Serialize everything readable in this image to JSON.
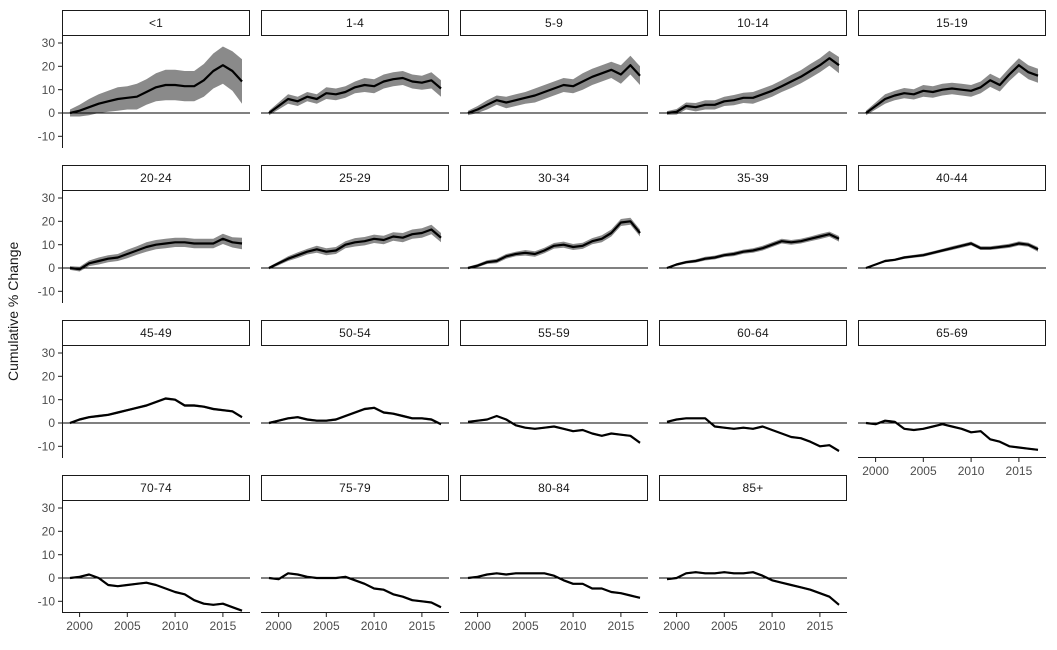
{
  "chart_data": {
    "type": "line",
    "title": "",
    "xlabel": "",
    "ylabel": "Cumulative % Change",
    "legend": "none",
    "grid": "off",
    "facet_layout": "5 columns x 4 rows, facet strips on top",
    "x": [
      1999,
      2000,
      2001,
      2002,
      2003,
      2004,
      2005,
      2006,
      2007,
      2008,
      2009,
      2010,
      2011,
      2012,
      2013,
      2014,
      2015,
      2016,
      2017
    ],
    "x_ticks": [
      2000,
      2005,
      2010,
      2015
    ],
    "y_ticks": [
      30,
      20,
      10,
      0,
      -10
    ],
    "ylim": [
      -15,
      33
    ],
    "line_color": "#000000",
    "ribbon_color": "#8a8a8a",
    "zero_line_color": "#000000",
    "axis_line_color": "#1a1a1a",
    "tick_text_color": "#4d4d4d",
    "panels": [
      {
        "label": "<1",
        "values": [
          0,
          1,
          2.5,
          4,
          5,
          6,
          6.5,
          7,
          9,
          11,
          12,
          12,
          11.5,
          11.5,
          14,
          18,
          20.5,
          18,
          13.5
        ],
        "band": [
          1.5,
          2.5,
          3.5,
          4,
          4.5,
          5,
          5,
          5.5,
          5.5,
          6,
          6.5,
          6.5,
          6.5,
          6.5,
          7,
          7.5,
          8,
          8.5,
          9.5
        ]
      },
      {
        "label": "1-4",
        "values": [
          0,
          3,
          6,
          5,
          7,
          6,
          8.5,
          8,
          9,
          11,
          12,
          11.5,
          13.5,
          14.5,
          15,
          13.5,
          13,
          14,
          10.5
        ],
        "band": [
          1,
          1.5,
          2,
          2,
          2,
          2,
          2.5,
          2.5,
          2.5,
          2.5,
          3,
          3,
          3,
          3,
          3,
          3,
          3,
          3.5,
          3.5
        ]
      },
      {
        "label": "5-9",
        "values": [
          0,
          1.5,
          3.5,
          5.5,
          4.5,
          5.5,
          6.5,
          7.5,
          9,
          10.5,
          12,
          11.5,
          13.5,
          15.5,
          17,
          18.5,
          16.5,
          20.5,
          16
        ],
        "band": [
          1,
          1.5,
          2,
          2,
          2.5,
          2.5,
          2.5,
          3,
          3,
          3,
          3,
          3,
          3.5,
          3.5,
          3.5,
          3.5,
          4,
          4,
          4
        ]
      },
      {
        "label": "10-14",
        "values": [
          0,
          0.5,
          3,
          2.5,
          3.5,
          3.5,
          5,
          5.5,
          6.5,
          6.5,
          8,
          9.5,
          11.5,
          13.5,
          15.5,
          18,
          20.5,
          23.5,
          20.5
        ],
        "band": [
          0.8,
          1.2,
          1.5,
          1.8,
          2,
          2,
          2,
          2.2,
          2.2,
          2.5,
          2.5,
          2.5,
          2.5,
          2.8,
          2.8,
          3,
          3,
          3.2,
          3.5
        ]
      },
      {
        "label": "15-19",
        "values": [
          0,
          3,
          6,
          7.5,
          8.5,
          8,
          9.5,
          9,
          10,
          10.5,
          10,
          9.5,
          11,
          14,
          12,
          16.5,
          20.5,
          17.5,
          16
        ],
        "band": [
          1,
          1.5,
          2,
          2,
          2.2,
          2.2,
          2.5,
          2.5,
          2.5,
          2.5,
          2.5,
          2.5,
          2.5,
          2.8,
          2.8,
          2.8,
          3,
          3,
          3
        ]
      },
      {
        "label": "20-24",
        "values": [
          0,
          -0.5,
          2,
          3,
          4,
          4.5,
          6,
          7.5,
          9,
          10,
          10.5,
          11,
          11,
          10.5,
          10.5,
          10.5,
          12.5,
          11,
          10.5
        ],
        "band": [
          0.8,
          1,
          1.2,
          1.5,
          1.5,
          1.5,
          1.8,
          1.8,
          2,
          2,
          2,
          2,
          2,
          2,
          2,
          2,
          2.2,
          2.2,
          2.5
        ]
      },
      {
        "label": "25-29",
        "values": [
          0,
          2,
          4,
          5.5,
          7,
          8,
          7,
          7.5,
          10,
          11,
          11.5,
          12.5,
          12,
          13.5,
          13,
          14.5,
          15,
          16.5,
          13
        ],
        "band": [
          0.6,
          0.8,
          1,
          1.2,
          1.2,
          1.5,
          1.5,
          1.5,
          1.5,
          1.8,
          1.8,
          1.8,
          1.8,
          1.8,
          2,
          2,
          2,
          2,
          2
        ]
      },
      {
        "label": "30-34",
        "values": [
          0,
          1,
          2.5,
          3,
          5,
          6,
          6.5,
          6,
          7.5,
          9.5,
          10,
          9,
          9.5,
          11.5,
          12.5,
          15,
          19.5,
          20,
          15
        ],
        "band": [
          0.5,
          0.7,
          0.8,
          1,
          1,
          1,
          1.2,
          1.2,
          1.2,
          1.2,
          1.3,
          1.3,
          1.3,
          1.3,
          1.5,
          1.5,
          1.5,
          1.5,
          1.5
        ]
      },
      {
        "label": "35-39",
        "values": [
          0,
          1.5,
          2.5,
          3,
          4,
          4.5,
          5.5,
          6,
          7,
          7.5,
          8.5,
          10,
          11.5,
          11,
          11.5,
          12.5,
          13.5,
          14.5,
          12.5
        ],
        "band": [
          0.4,
          0.5,
          0.6,
          0.7,
          0.8,
          0.8,
          0.8,
          0.9,
          0.9,
          1,
          1,
          1,
          1,
          1,
          1,
          1,
          1.1,
          1.1,
          1.2
        ]
      },
      {
        "label": "40-44",
        "values": [
          0,
          1.5,
          3,
          3.5,
          4.5,
          5,
          5.5,
          6.5,
          7.5,
          8.5,
          9.5,
          10.5,
          8.5,
          8.5,
          9,
          9.5,
          10.5,
          10,
          8
        ],
        "band": [
          0.3,
          0.4,
          0.5,
          0.5,
          0.6,
          0.6,
          0.7,
          0.7,
          0.7,
          0.8,
          0.8,
          0.8,
          0.8,
          0.8,
          0.8,
          0.9,
          0.9,
          0.9,
          1
        ]
      },
      {
        "label": "45-49",
        "values": [
          0,
          1.5,
          2.5,
          3,
          3.5,
          4.5,
          5.5,
          6.5,
          7.5,
          9,
          10.5,
          10,
          7.5,
          7.5,
          7,
          6,
          5.5,
          5,
          2.5
        ],
        "band": 0.5
      },
      {
        "label": "50-54",
        "values": [
          0,
          1,
          2,
          2.5,
          1.5,
          1,
          1,
          1.5,
          3,
          4.5,
          6,
          6.5,
          4.5,
          4,
          3,
          2,
          2,
          1.5,
          -0.5
        ],
        "band": 0.5
      },
      {
        "label": "55-59",
        "values": [
          0.5,
          1,
          1.5,
          3,
          1.5,
          -1,
          -2,
          -2.5,
          -2,
          -1.5,
          -2.5,
          -3.5,
          -3,
          -4.5,
          -5.5,
          -4.5,
          -5,
          -5.5,
          -8.5
        ],
        "band": 0.4
      },
      {
        "label": "60-64",
        "values": [
          0.5,
          1.5,
          2,
          2,
          2,
          -1.5,
          -2,
          -2.5,
          -2,
          -2.5,
          -1.5,
          -3,
          -4.5,
          -6,
          -6.5,
          -8,
          -10,
          -9.5,
          -12
        ],
        "band": 0.4
      },
      {
        "label": "65-69",
        "values": [
          0,
          -0.5,
          1,
          0.5,
          -2.5,
          -3,
          -2.5,
          -1.5,
          -0.5,
          -1.5,
          -2.5,
          -4,
          -3.5,
          -7,
          -8,
          -10,
          -10.5,
          -11,
          -11.5
        ],
        "band": 0.4
      },
      {
        "label": "70-74",
        "values": [
          0,
          0.5,
          1.5,
          0,
          -3,
          -3.5,
          -3,
          -2.5,
          -2,
          -3,
          -4.5,
          -6,
          -7,
          -9.5,
          -11,
          -11.5,
          -11,
          -12.5,
          -14
        ],
        "band": 0.4
      },
      {
        "label": "75-79",
        "values": [
          0,
          -0.5,
          2,
          1.5,
          0.5,
          0,
          0,
          0,
          0.5,
          -1,
          -2.5,
          -4.5,
          -5,
          -7,
          -8,
          -9.5,
          -10,
          -10.5,
          -12.5
        ],
        "band": 0.4
      },
      {
        "label": "80-84",
        "values": [
          0,
          0.5,
          1.5,
          2,
          1.5,
          2,
          2,
          2,
          2,
          1,
          -1,
          -2.5,
          -2.5,
          -4.5,
          -4.5,
          -6,
          -6.5,
          -7.5,
          -8.5
        ],
        "band": 0.4
      },
      {
        "label": "85+",
        "values": [
          -0.5,
          0,
          2,
          2.5,
          2,
          2,
          2.5,
          2,
          2,
          2.5,
          1,
          -1,
          -2,
          -3,
          -4,
          -5,
          -6.5,
          -8,
          -11.5
        ],
        "band": 0.4
      }
    ]
  }
}
